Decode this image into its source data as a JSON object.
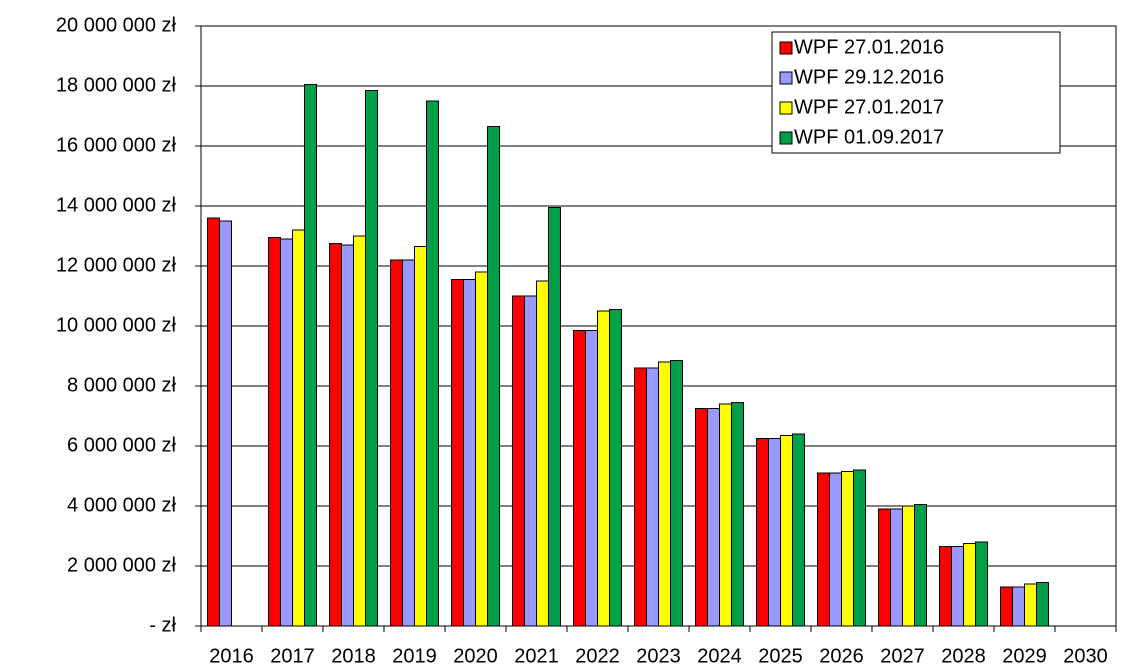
{
  "chart_data": {
    "type": "bar",
    "categories": [
      "2016",
      "2017",
      "2018",
      "2019",
      "2020",
      "2021",
      "2022",
      "2023",
      "2024",
      "2025",
      "2026",
      "2027",
      "2028",
      "2029",
      "2030"
    ],
    "series": [
      {
        "name": "WPF 27.01.2016",
        "color": "#ff0000",
        "values": [
          13600000,
          12950000,
          12750000,
          12200000,
          11550000,
          11000000,
          9850000,
          8600000,
          7250000,
          6250000,
          5100000,
          3900000,
          2650000,
          1300000,
          null
        ]
      },
      {
        "name": "WPF 29.12.2016",
        "color": "#9999ff",
        "values": [
          13500000,
          12900000,
          12700000,
          12200000,
          11550000,
          11000000,
          9850000,
          8600000,
          7250000,
          6250000,
          5100000,
          3900000,
          2650000,
          1300000,
          null
        ]
      },
      {
        "name": "WPF 27.01.2017",
        "color": "#ffff00",
        "values": [
          null,
          13200000,
          13000000,
          12650000,
          11800000,
          11500000,
          10500000,
          8800000,
          7400000,
          6350000,
          5150000,
          4000000,
          2750000,
          1400000,
          null
        ]
      },
      {
        "name": "WPF 01.09.2017",
        "color": "#00a04a",
        "values": [
          null,
          18050000,
          17850000,
          17500000,
          16650000,
          13950000,
          10550000,
          8850000,
          7450000,
          6400000,
          5200000,
          4050000,
          2800000,
          1450000,
          null
        ]
      }
    ],
    "ylim": [
      0,
      20000000
    ],
    "yticks": [
      {
        "value": 0,
        "label": "- zł"
      },
      {
        "value": 2000000,
        "label": "2 000 000 zł"
      },
      {
        "value": 4000000,
        "label": "4 000 000 zł"
      },
      {
        "value": 6000000,
        "label": "6 000 000 zł"
      },
      {
        "value": 8000000,
        "label": "8 000 000 zł"
      },
      {
        "value": 10000000,
        "label": "10 000 000 zł"
      },
      {
        "value": 12000000,
        "label": "12 000 000 zł"
      },
      {
        "value": 14000000,
        "label": "14 000 000 zł"
      },
      {
        "value": 16000000,
        "label": "16 000 000 zł"
      },
      {
        "value": 18000000,
        "label": "18 000 000 zł"
      },
      {
        "value": 20000000,
        "label": "20 000 000 zł"
      }
    ],
    "grid": true,
    "legend": "upper right"
  }
}
